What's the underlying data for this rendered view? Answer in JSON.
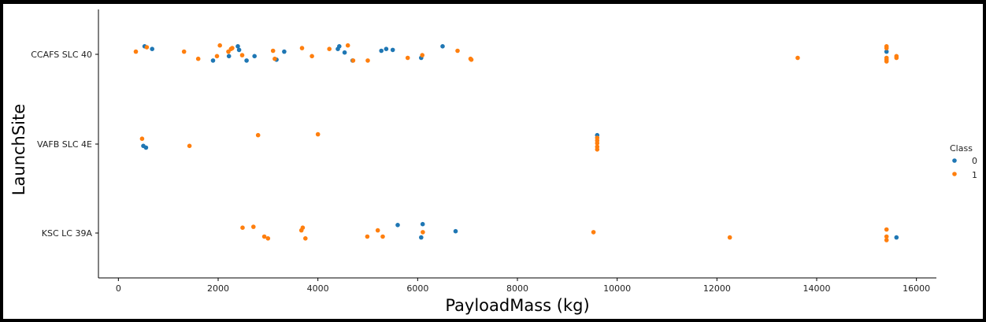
{
  "chart_data": {
    "type": "scatter",
    "subtype": "strip",
    "xlabel": "PayloadMass (kg)",
    "ylabel": "LaunchSite",
    "xlim": [
      -400,
      16400
    ],
    "xticks": [
      0,
      2000,
      4000,
      6000,
      8000,
      10000,
      12000,
      14000,
      16000
    ],
    "categories": [
      "CCAFS SLC 40",
      "VAFB SLC 4E",
      "KSC LC 39A"
    ],
    "grid": false,
    "legend": {
      "title": "Class",
      "placement": "right",
      "entries": [
        {
          "label": "0",
          "color": "#1f77b4"
        },
        {
          "label": "1",
          "color": "#ff7f0e"
        }
      ]
    },
    "series": [
      {
        "class": "0",
        "color": "#1f77b4",
        "points": [
          {
            "site": "CCAFS SLC 40",
            "x": 525,
            "jitter": -0.09
          },
          {
            "site": "CCAFS SLC 40",
            "x": 677,
            "jitter": -0.06
          },
          {
            "site": "CCAFS SLC 40",
            "x": 1898,
            "jitter": 0.07
          },
          {
            "site": "CCAFS SLC 40",
            "x": 2216,
            "jitter": 0.02
          },
          {
            "site": "CCAFS SLC 40",
            "x": 2395,
            "jitter": -0.09
          },
          {
            "site": "CCAFS SLC 40",
            "x": 2420,
            "jitter": -0.05
          },
          {
            "site": "CCAFS SLC 40",
            "x": 2570,
            "jitter": 0.07
          },
          {
            "site": "CCAFS SLC 40",
            "x": 2730,
            "jitter": 0.02
          },
          {
            "site": "CCAFS SLC 40",
            "x": 3170,
            "jitter": 0.06
          },
          {
            "site": "CCAFS SLC 40",
            "x": 3325,
            "jitter": -0.03
          },
          {
            "site": "CCAFS SLC 40",
            "x": 4400,
            "jitter": -0.06
          },
          {
            "site": "CCAFS SLC 40",
            "x": 4428,
            "jitter": -0.09
          },
          {
            "site": "CCAFS SLC 40",
            "x": 4535,
            "jitter": -0.02
          },
          {
            "site": "CCAFS SLC 40",
            "x": 4696,
            "jitter": 0.07
          },
          {
            "site": "CCAFS SLC 40",
            "x": 5271,
            "jitter": -0.04
          },
          {
            "site": "CCAFS SLC 40",
            "x": 5370,
            "jitter": -0.06
          },
          {
            "site": "CCAFS SLC 40",
            "x": 5500,
            "jitter": -0.05
          },
          {
            "site": "CCAFS SLC 40",
            "x": 6070,
            "jitter": 0.04
          },
          {
            "site": "CCAFS SLC 40",
            "x": 6500,
            "jitter": -0.09
          },
          {
            "site": "CCAFS SLC 40",
            "x": 15400,
            "jitter": -0.03
          },
          {
            "site": "VAFB SLC 4E",
            "x": 500,
            "jitter": 0.02
          },
          {
            "site": "VAFB SLC 4E",
            "x": 553,
            "jitter": 0.04
          },
          {
            "site": "VAFB SLC 4E",
            "x": 9600,
            "jitter": -0.1
          },
          {
            "site": "KSC LC 39A",
            "x": 5600,
            "jitter": -0.09
          },
          {
            "site": "KSC LC 39A",
            "x": 6100,
            "jitter": -0.1
          },
          {
            "site": "KSC LC 39A",
            "x": 6070,
            "jitter": 0.05
          },
          {
            "site": "KSC LC 39A",
            "x": 6761,
            "jitter": -0.02
          },
          {
            "site": "KSC LC 39A",
            "x": 15600,
            "jitter": 0.05
          }
        ]
      },
      {
        "class": "1",
        "color": "#ff7f0e",
        "points": [
          {
            "site": "CCAFS SLC 40",
            "x": 350,
            "jitter": -0.03
          },
          {
            "site": "CCAFS SLC 40",
            "x": 570,
            "jitter": -0.08
          },
          {
            "site": "CCAFS SLC 40",
            "x": 1316,
            "jitter": -0.03
          },
          {
            "site": "CCAFS SLC 40",
            "x": 1600,
            "jitter": 0.05
          },
          {
            "site": "CCAFS SLC 40",
            "x": 1977,
            "jitter": 0.02
          },
          {
            "site": "CCAFS SLC 40",
            "x": 2034,
            "jitter": -0.1
          },
          {
            "site": "CCAFS SLC 40",
            "x": 2205,
            "jitter": -0.03
          },
          {
            "site": "CCAFS SLC 40",
            "x": 2257,
            "jitter": -0.06
          },
          {
            "site": "CCAFS SLC 40",
            "x": 2282,
            "jitter": -0.07
          },
          {
            "site": "CCAFS SLC 40",
            "x": 2482,
            "jitter": 0.01
          },
          {
            "site": "CCAFS SLC 40",
            "x": 3100,
            "jitter": -0.04
          },
          {
            "site": "CCAFS SLC 40",
            "x": 3136,
            "jitter": 0.05
          },
          {
            "site": "CCAFS SLC 40",
            "x": 3681,
            "jitter": -0.07
          },
          {
            "site": "CCAFS SLC 40",
            "x": 3880,
            "jitter": 0.02
          },
          {
            "site": "CCAFS SLC 40",
            "x": 4230,
            "jitter": -0.06
          },
          {
            "site": "CCAFS SLC 40",
            "x": 4600,
            "jitter": -0.1
          },
          {
            "site": "CCAFS SLC 40",
            "x": 4707,
            "jitter": 0.07
          },
          {
            "site": "CCAFS SLC 40",
            "x": 5000,
            "jitter": 0.07
          },
          {
            "site": "CCAFS SLC 40",
            "x": 5800,
            "jitter": 0.04
          },
          {
            "site": "CCAFS SLC 40",
            "x": 6092,
            "jitter": 0.01
          },
          {
            "site": "CCAFS SLC 40",
            "x": 6800,
            "jitter": -0.04
          },
          {
            "site": "CCAFS SLC 40",
            "x": 7060,
            "jitter": 0.05
          },
          {
            "site": "CCAFS SLC 40",
            "x": 7076,
            "jitter": 0.06
          },
          {
            "site": "CCAFS SLC 40",
            "x": 13620,
            "jitter": 0.04
          },
          {
            "site": "CCAFS SLC 40",
            "x": 15400,
            "jitter": -0.09
          },
          {
            "site": "CCAFS SLC 40",
            "x": 15400,
            "jitter": -0.07
          },
          {
            "site": "CCAFS SLC 40",
            "x": 15400,
            "jitter": 0.04
          },
          {
            "site": "CCAFS SLC 40",
            "x": 15400,
            "jitter": 0.06
          },
          {
            "site": "CCAFS SLC 40",
            "x": 15400,
            "jitter": 0.08
          },
          {
            "site": "CCAFS SLC 40",
            "x": 15600,
            "jitter": 0.02
          },
          {
            "site": "CCAFS SLC 40",
            "x": 15600,
            "jitter": 0.04
          },
          {
            "site": "VAFB SLC 4E",
            "x": 475,
            "jitter": -0.06
          },
          {
            "site": "VAFB SLC 4E",
            "x": 1425,
            "jitter": 0.02
          },
          {
            "site": "VAFB SLC 4E",
            "x": 2800,
            "jitter": -0.1
          },
          {
            "site": "VAFB SLC 4E",
            "x": 4000,
            "jitter": -0.11
          },
          {
            "site": "VAFB SLC 4E",
            "x": 9600,
            "jitter": -0.07
          },
          {
            "site": "VAFB SLC 4E",
            "x": 9600,
            "jitter": -0.04
          },
          {
            "site": "VAFB SLC 4E",
            "x": 9600,
            "jitter": -0.01
          },
          {
            "site": "VAFB SLC 4E",
            "x": 9600,
            "jitter": 0.03
          },
          {
            "site": "VAFB SLC 4E",
            "x": 9600,
            "jitter": 0.06
          },
          {
            "site": "KSC LC 39A",
            "x": 2490,
            "jitter": -0.06
          },
          {
            "site": "KSC LC 39A",
            "x": 2708,
            "jitter": -0.07
          },
          {
            "site": "KSC LC 39A",
            "x": 2926,
            "jitter": 0.04
          },
          {
            "site": "KSC LC 39A",
            "x": 3000,
            "jitter": 0.06
          },
          {
            "site": "KSC LC 39A",
            "x": 3669,
            "jitter": -0.03
          },
          {
            "site": "KSC LC 39A",
            "x": 3696,
            "jitter": -0.06
          },
          {
            "site": "KSC LC 39A",
            "x": 3750,
            "jitter": 0.06
          },
          {
            "site": "KSC LC 39A",
            "x": 4990,
            "jitter": 0.04
          },
          {
            "site": "KSC LC 39A",
            "x": 5200,
            "jitter": -0.03
          },
          {
            "site": "KSC LC 39A",
            "x": 5300,
            "jitter": 0.04
          },
          {
            "site": "KSC LC 39A",
            "x": 6104,
            "jitter": -0.01
          },
          {
            "site": "KSC LC 39A",
            "x": 9525,
            "jitter": -0.01
          },
          {
            "site": "KSC LC 39A",
            "x": 12259,
            "jitter": 0.05
          },
          {
            "site": "KSC LC 39A",
            "x": 15400,
            "jitter": -0.04
          },
          {
            "site": "KSC LC 39A",
            "x": 15400,
            "jitter": 0.04
          },
          {
            "site": "KSC LC 39A",
            "x": 15400,
            "jitter": 0.08
          }
        ]
      }
    ]
  }
}
